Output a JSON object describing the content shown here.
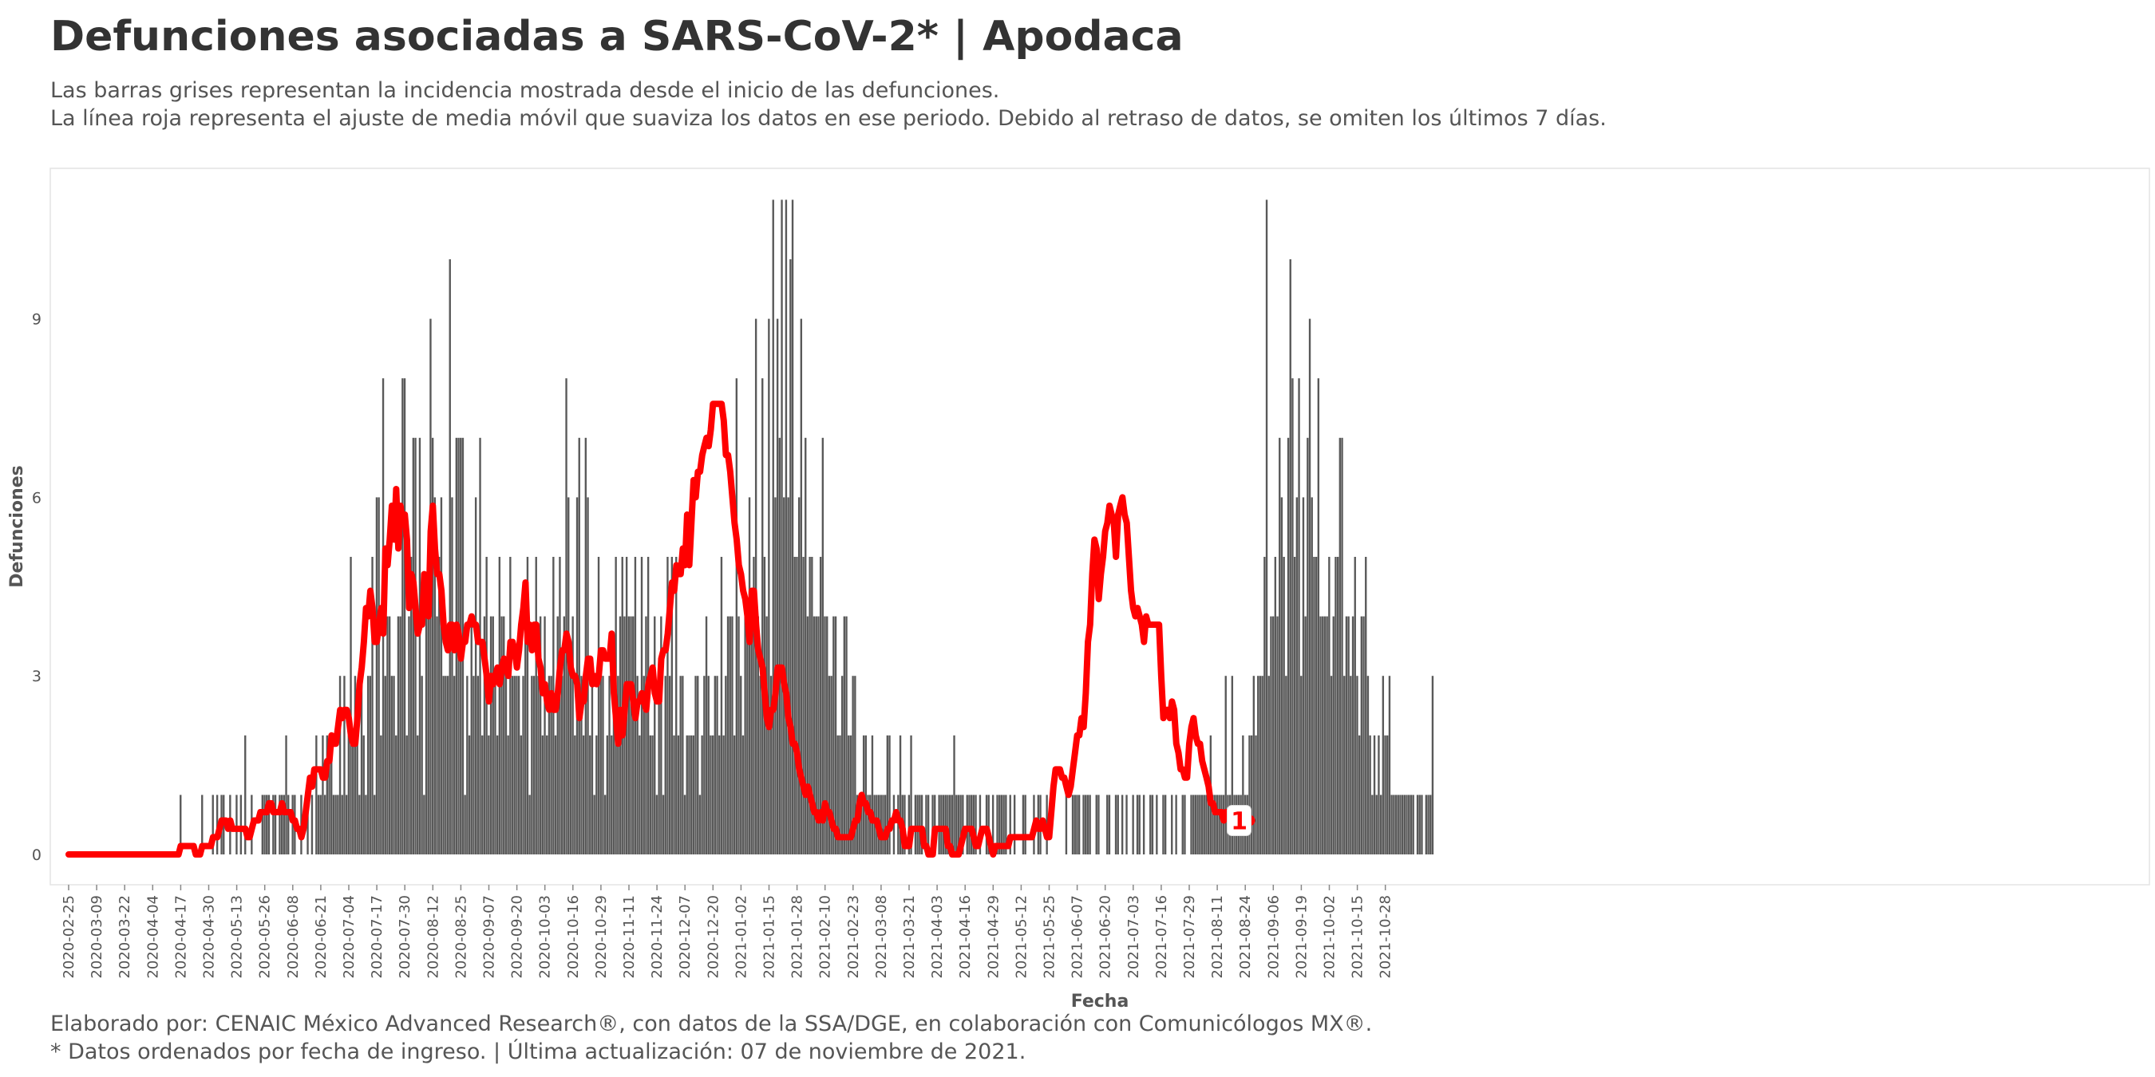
{
  "title": "Defunciones asociadas a SARS-CoV-2* | Apodaca",
  "subtitle_lines": [
    "Las barras grises representan la incidencia mostrada desde el inicio de las defunciones.",
    "La línea roja representa el ajuste de media móvil que suaviza los datos en ese periodo. Debido al retraso de datos, se omiten los últimos 7 días."
  ],
  "caption_lines": [
    "Elaborado por: CENAIC México Advanced Research®, con datos de la SSA/DGE, en colaboración con Comunicólogos MX®.",
    "* Datos ordenados por fecha de ingreso. | Última actualización: 07 de noviembre de 2021."
  ],
  "colors": {
    "bars": "#595959",
    "line": "#ff0000",
    "text": "#333333",
    "axis_text": "#555555"
  },
  "chart_data": {
    "type": "bar",
    "xlabel": "Fecha",
    "ylabel": "Defunciones",
    "x_range": [
      "2020-02-25",
      "2021-11-06"
    ],
    "ylim": [
      0,
      11
    ],
    "yticks": [
      0,
      3,
      6,
      9
    ],
    "xtick_labels": [
      "2020-02-25",
      "2020-03-09",
      "2020-03-22",
      "2020-04-04",
      "2020-04-17",
      "2020-04-30",
      "2020-05-13",
      "2020-05-26",
      "2020-06-08",
      "2020-06-21",
      "2020-07-04",
      "2020-07-17",
      "2020-07-30",
      "2020-08-12",
      "2020-08-25",
      "2020-09-07",
      "2020-09-20",
      "2020-10-03",
      "2020-10-16",
      "2020-10-29",
      "2020-11-11",
      "2020-11-24",
      "2020-12-07",
      "2020-12-20",
      "2021-01-02",
      "2021-01-15",
      "2021-01-28",
      "2021-02-10",
      "2021-02-23",
      "2021-03-08",
      "2021-03-21",
      "2021-04-03",
      "2021-04-16",
      "2021-04-29",
      "2021-05-12",
      "2021-05-25",
      "2021-06-07",
      "2021-06-20",
      "2021-07-03",
      "2021-07-16",
      "2021-07-29",
      "2021-08-11",
      "2021-08-24",
      "2021-09-06",
      "2021-09-19",
      "2021-10-02",
      "2021-10-15",
      "2021-10-28"
    ],
    "grid": false,
    "legend": "none",
    "series": [
      {
        "type": "bar",
        "start_date": "2020-02-25",
        "values": [
          0,
          0,
          0,
          0,
          0,
          0,
          0,
          0,
          0,
          0,
          0,
          0,
          0,
          0,
          0,
          0,
          0,
          0,
          0,
          0,
          0,
          0,
          0,
          0,
          0,
          0,
          0,
          0,
          0,
          0,
          0,
          0,
          0,
          0,
          0,
          0,
          0,
          0,
          0,
          0,
          0,
          0,
          0,
          0,
          0,
          0,
          0,
          0,
          0,
          0,
          0,
          0,
          1,
          0,
          0,
          0,
          0,
          0,
          0,
          0,
          0,
          0,
          1,
          0,
          0,
          0,
          0,
          1,
          0,
          1,
          0,
          1,
          1,
          0,
          0,
          1,
          0,
          0,
          1,
          0,
          1,
          0,
          2,
          0,
          0,
          1,
          0,
          0,
          0,
          0,
          1,
          1,
          1,
          1,
          0,
          1,
          1,
          0,
          1,
          1,
          1,
          2,
          1,
          0,
          1,
          1,
          0,
          0,
          1,
          0,
          0,
          1,
          0,
          1,
          0,
          2,
          1,
          1,
          2,
          1,
          2,
          2,
          2,
          1,
          1,
          1,
          3,
          1,
          3,
          1,
          2,
          5,
          2,
          3,
          2,
          1,
          3,
          2,
          1,
          3,
          3,
          5,
          1,
          6,
          6,
          2,
          8,
          3,
          4,
          4,
          3,
          3,
          2,
          4,
          4,
          8,
          8,
          2,
          4,
          5,
          7,
          7,
          2,
          7,
          3,
          1,
          4,
          5,
          9,
          7,
          6,
          4,
          5,
          6,
          3,
          3,
          3,
          10,
          6,
          3,
          7,
          7,
          7,
          7,
          1,
          3,
          2,
          4,
          3,
          6,
          3,
          7,
          2,
          4,
          5,
          2,
          4,
          4,
          3,
          2,
          5,
          4,
          4,
          3,
          2,
          5,
          3,
          3,
          3,
          3,
          2,
          3,
          4,
          5,
          1,
          3,
          3,
          5,
          3,
          4,
          2,
          4,
          2,
          3,
          3,
          5,
          2,
          4,
          5,
          3,
          4,
          8,
          6,
          3,
          4,
          2,
          6,
          7,
          3,
          2,
          7,
          6,
          2,
          3,
          1,
          2,
          5,
          3,
          3,
          1,
          2,
          3,
          2,
          3,
          5,
          3,
          4,
          5,
          4,
          5,
          4,
          4,
          4,
          5,
          3,
          2,
          5,
          3,
          4,
          5,
          2,
          2,
          4,
          1,
          3,
          4,
          1,
          3,
          5,
          3,
          5,
          2,
          5,
          2,
          3,
          3,
          1,
          2,
          2,
          2,
          2,
          3,
          3,
          1,
          2,
          3,
          4,
          3,
          2,
          2,
          3,
          3,
          2,
          5,
          2,
          3,
          4,
          4,
          4,
          2,
          8,
          4,
          3,
          2,
          4,
          4,
          6,
          4,
          5,
          9,
          4,
          3,
          8,
          5,
          4,
          9,
          3,
          11,
          6,
          9,
          7,
          11,
          6,
          11,
          6,
          10,
          11,
          5,
          5,
          6,
          9,
          5,
          7,
          4,
          5,
          5,
          4,
          4,
          4,
          5,
          7,
          4,
          4,
          3,
          3,
          4,
          4,
          2,
          2,
          3,
          4,
          4,
          2,
          2,
          3,
          3,
          1,
          1,
          1,
          2,
          2,
          1,
          1,
          2,
          1,
          1,
          1,
          1,
          1,
          1,
          2,
          2,
          0,
          1,
          0,
          1,
          2,
          1,
          1,
          0,
          1,
          2,
          0,
          1,
          1,
          1,
          1,
          0,
          1,
          1,
          0,
          1,
          1,
          0,
          1,
          1,
          1,
          1,
          1,
          1,
          1,
          2,
          1,
          1,
          1,
          1,
          0,
          1,
          1,
          1,
          1,
          1,
          0,
          1,
          0,
          0,
          1,
          1,
          0,
          1,
          0,
          1,
          1,
          1,
          1,
          1,
          0,
          1,
          0,
          1,
          0,
          0,
          0,
          1,
          1,
          0,
          0,
          0,
          1,
          0,
          1,
          1,
          0,
          0,
          1,
          0,
          0,
          0,
          0,
          0,
          0,
          0,
          0,
          1,
          0,
          0,
          1,
          1,
          1,
          1,
          0,
          1,
          1,
          1,
          1,
          0,
          0,
          1,
          1,
          0,
          0,
          0,
          1,
          1,
          0,
          0,
          1,
          1,
          0,
          1,
          0,
          1,
          0,
          0,
          1,
          0,
          1,
          1,
          0,
          1,
          0,
          0,
          1,
          1,
          0,
          1,
          0,
          0,
          1,
          1,
          0,
          0,
          1,
          0,
          1,
          0,
          0,
          1,
          1,
          0,
          0,
          1,
          1,
          1,
          1,
          1,
          1,
          1,
          1,
          1,
          2,
          1,
          1,
          1,
          1,
          1,
          1,
          3,
          1,
          1,
          3,
          1,
          1,
          1,
          1,
          2,
          1,
          1,
          2,
          2,
          3,
          2,
          3,
          3,
          3,
          5,
          11,
          3,
          4,
          4,
          5,
          4,
          7,
          6,
          5,
          3,
          7,
          10,
          8,
          5,
          6,
          8,
          3,
          6,
          4,
          7,
          9,
          6,
          5,
          5,
          8,
          4,
          4,
          4,
          4,
          5,
          3,
          4,
          5,
          5,
          7,
          7,
          3,
          4,
          4,
          3,
          4,
          5,
          3,
          2,
          4,
          4,
          5,
          3,
          2,
          1,
          2,
          1,
          2,
          1,
          3,
          2,
          2,
          3,
          1,
          1,
          1,
          1,
          1,
          1,
          1,
          1,
          1,
          1,
          1,
          0,
          1,
          1,
          1,
          0,
          1,
          1,
          1,
          3
        ]
      },
      {
        "type": "line",
        "name": "",
        "start_date": "2020-02-25",
        "values": [
          0,
          0,
          0,
          0,
          0,
          0,
          0,
          0,
          0,
          0,
          0,
          0,
          0,
          0,
          0,
          0,
          0,
          0,
          0,
          0,
          0,
          0,
          0,
          0,
          0,
          0,
          0,
          0,
          0,
          0,
          0,
          0,
          0,
          0,
          0,
          0,
          0,
          0,
          0,
          0,
          0,
          0,
          0,
          0,
          0,
          0,
          0,
          0,
          0,
          0,
          0,
          0,
          0.14,
          0.14,
          0.14,
          0.14,
          0.14,
          0.14,
          0.14,
          0,
          0,
          0,
          0.14,
          0.14,
          0.14,
          0.14,
          0.14,
          0.29,
          0.29,
          0.29,
          0.43,
          0.57,
          0.57,
          0.57,
          0.43,
          0.57,
          0.43,
          0.43,
          0.43,
          0.43,
          0.43,
          0.43,
          0.43,
          0.29,
          0.29,
          0.43,
          0.57,
          0.57,
          0.57,
          0.71,
          0.71,
          0.71,
          0.71,
          0.86,
          0.86,
          0.71,
          0.71,
          0.71,
          0.71,
          0.86,
          0.71,
          0.71,
          0.71,
          0.71,
          0.57,
          0.57,
          0.43,
          0.43,
          0.29,
          0.43,
          0.71,
          1,
          1.29,
          1.14,
          1.43,
          1.43,
          1.43,
          1.43,
          1.29,
          1.29,
          1.57,
          1.57,
          2,
          1.86,
          1.86,
          2.14,
          2.43,
          2.29,
          2.43,
          2.43,
          2.29,
          2,
          1.86,
          1.86,
          2.29,
          2.86,
          3.14,
          3.57,
          4.14,
          4,
          4.43,
          4.14,
          3.57,
          3.57,
          3.86,
          4.14,
          3.71,
          5.14,
          4.86,
          5.29,
          5.86,
          5.29,
          6.14,
          5.14,
          5.86,
          5.57,
          5.71,
          5.29,
          4.14,
          4.71,
          4.57,
          4.14,
          3.71,
          3.86,
          3.86,
          4.71,
          4.43,
          4,
          5.43,
          5.86,
          5.14,
          4.71,
          4.71,
          4.43,
          3.86,
          3.57,
          3.43,
          3.86,
          3.86,
          3.43,
          3.86,
          3.71,
          3.29,
          3.57,
          3.57,
          3.86,
          3.86,
          4,
          3.86,
          3.86,
          3.57,
          3.57,
          3.57,
          3.29,
          3,
          2.57,
          3,
          2.86,
          3,
          3.14,
          2.86,
          3.14,
          3.29,
          3.14,
          3,
          3.57,
          3.57,
          3.43,
          3.14,
          3.43,
          3.86,
          4.14,
          4.57,
          3.57,
          3.86,
          3.43,
          3.86,
          3.86,
          3.29,
          3.14,
          2.71,
          2.86,
          2.57,
          2.43,
          2.71,
          2.43,
          2.43,
          2.71,
          3.14,
          3.43,
          3.43,
          3.71,
          3.57,
          3.14,
          3,
          3,
          2.86,
          2.29,
          2.57,
          2.57,
          3,
          3.29,
          3.29,
          2.86,
          3,
          2.86,
          3,
          3.43,
          3.43,
          3.29,
          3.29,
          3.29,
          3.71,
          2.71,
          2.29,
          1.86,
          2.43,
          2,
          2.43,
          2.86,
          2.86,
          2.86,
          2.57,
          2.29,
          2.57,
          2.57,
          2.71,
          2.57,
          2.43,
          2.86,
          3,
          3.14,
          2.71,
          2.57,
          2.57,
          3.29,
          3.43,
          3.43,
          3.71,
          4.14,
          4.57,
          4.43,
          4.86,
          4.71,
          4.71,
          5.14,
          4.86,
          5.71,
          4.86,
          5.57,
          6.29,
          6,
          6.43,
          6.43,
          6.71,
          6.86,
          7,
          6.86,
          7.14,
          7.57,
          7.57,
          7.57,
          7.57,
          7.57,
          7.29,
          6.71,
          6.71,
          6.43,
          6,
          5.57,
          5.29,
          4.86,
          4.71,
          4.43,
          4.29,
          4,
          3.57,
          4.43,
          4.43,
          3.86,
          3.43,
          3.29,
          3.14,
          2.71,
          2.29,
          2.14,
          2.43,
          2.43,
          2.71,
          3.14,
          3.14,
          3.14,
          2.86,
          2.71,
          2.29,
          2.14,
          1.86,
          1.86,
          1.71,
          1.43,
          1.29,
          1.14,
          1,
          1.14,
          1,
          0.86,
          0.71,
          0.71,
          0.57,
          0.71,
          0.57,
          0.86,
          0.71,
          0.71,
          0.57,
          0.43,
          0.43,
          0.29,
          0.29,
          0.29,
          0.29,
          0.29,
          0.29,
          0.29,
          0.43,
          0.57,
          0.57,
          0.86,
          1,
          0.86,
          0.86,
          0.71,
          0.71,
          0.57,
          0.57,
          0.57,
          0.43,
          0.29,
          0.29,
          0.29,
          0.43,
          0.43,
          0.57,
          0.57,
          0.71,
          0.57,
          0.57,
          0.43,
          0.14,
          0.14,
          0.14,
          0.43,
          0.43,
          0.43,
          0.43,
          0.43,
          0.43,
          0.14,
          0.14,
          0,
          0,
          0,
          0.43,
          0.43,
          0.43,
          0.43,
          0.43,
          0.43,
          0.14,
          0.14,
          0,
          0,
          0,
          0,
          0.14,
          0.29,
          0.43,
          0.43,
          0.43,
          0.43,
          0.29,
          0.14,
          0.14,
          0.29,
          0.43,
          0.43,
          0.43,
          0.29,
          0.14,
          0,
          0.14,
          0.14,
          0.14,
          0.14,
          0.14,
          0.14,
          0.14,
          0.29,
          0.29,
          0.29,
          0.29,
          0.29,
          0.29,
          0.29,
          0.29,
          0.29,
          0.29,
          0.29,
          0.43,
          0.57,
          0.43,
          0.43,
          0.57,
          0.43,
          0.29,
          0.29,
          0.71,
          1.14,
          1.43,
          1.43,
          1.43,
          1.29,
          1.29,
          1.14,
          1,
          1.14,
          1.43,
          1.71,
          2,
          2,
          2.29,
          2.14,
          2.71,
          3.57,
          3.86,
          4.71,
          5.29,
          5.14,
          4.29,
          4.71,
          5,
          5.43,
          5.57,
          5.86,
          5.71,
          5.57,
          5,
          5.71,
          5.86,
          6,
          5.71,
          5.57,
          5,
          4.43,
          4.14,
          4,
          4.14,
          4,
          3.86,
          3.57,
          4,
          3.86,
          3.86,
          3.86,
          3.86,
          3.86,
          3.86,
          3,
          2.29,
          2.43,
          2.43,
          2.29,
          2.57,
          2.43,
          1.86,
          1.71,
          1.43,
          1.43,
          1.29,
          1.29,
          1.86,
          2.14,
          2.29,
          2,
          1.86,
          1.86,
          1.57,
          1.43,
          1.29,
          1.14,
          0.86,
          0.86,
          0.71,
          0.71,
          0.71,
          0.71,
          0.57,
          0.71,
          0.71,
          0.71,
          0.57,
          0.57,
          0.57,
          0.57,
          0.57,
          0.57
        ]
      }
    ],
    "annotations": [
      {
        "label": "1",
        "date": "2021-11-06"
      }
    ]
  }
}
